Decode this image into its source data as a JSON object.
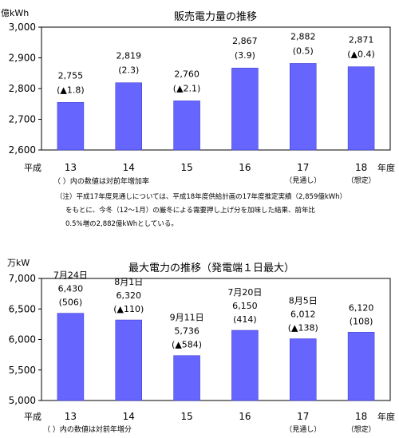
{
  "chart_data": [
    {
      "type": "bar",
      "title": "販売電力量の推移",
      "ylabel": "億kWh",
      "ylim": [
        2600,
        3000
      ],
      "yticks": [
        2600,
        2700,
        2800,
        2900,
        3000
      ],
      "ytick_labels": [
        "2,600",
        "2,700",
        "2,800",
        "2,900",
        "3,000"
      ],
      "xprefix": "平成",
      "xsuffix": "年度",
      "categories": [
        "13",
        "14",
        "15",
        "16",
        "17",
        "18"
      ],
      "category_notes": [
        "",
        "",
        "",
        "",
        "（見通し）",
        "（想定）"
      ],
      "values": [
        2755,
        2819,
        2760,
        2867,
        2882,
        2871
      ],
      "value_labels": [
        "2,755",
        "2,819",
        "2,760",
        "2,867",
        "2,882",
        "2,871"
      ],
      "change_labels": [
        "(▲1.8)",
        "(2.3)",
        "(▲2.1)",
        "(3.9)",
        "(0.5)",
        "(▲0.4)"
      ],
      "bar_color": "#6666ff",
      "grid": false,
      "note_paren": "（ ）内の数値は対前年増加率",
      "footnote": [
        "（注）平成17年度見通しについては、平成18年度供給計画の17年度推定実績（2,859億kWh）",
        "をもとに、今冬（12～1月）の厳冬による需要押し上げ分を加味した結果、前年比",
        "0.5%増の2,882億kWhとしている。"
      ]
    },
    {
      "type": "bar",
      "title": "最大電力の推移（発電端１日最大）",
      "ylabel": "万kW",
      "ylim": [
        5000,
        7000
      ],
      "yticks": [
        5000,
        5500,
        6000,
        6500,
        7000
      ],
      "ytick_labels": [
        "5,000",
        "5,500",
        "6,000",
        "6,500",
        "7,000"
      ],
      "xprefix": "平成",
      "xsuffix": "年度",
      "categories": [
        "13",
        "14",
        "15",
        "16",
        "17",
        "18"
      ],
      "category_notes": [
        "",
        "",
        "",
        "",
        "（見通し）",
        "（想定）"
      ],
      "values": [
        6430,
        6320,
        5736,
        6150,
        6012,
        6120
      ],
      "value_labels": [
        "6,430",
        "6,320",
        "5,736",
        "6,150",
        "6,012",
        "6,120"
      ],
      "date_labels": [
        "7月24日",
        "8月1日",
        "9月11日",
        "7月20日",
        "8月5日",
        ""
      ],
      "change_labels": [
        "(506)",
        "(▲110)",
        "(▲584)",
        "(414)",
        "(▲138)",
        "(108)"
      ],
      "bar_color": "#6666ff",
      "grid": false,
      "note_paren": "（ ）内の数値は対前年増分"
    }
  ]
}
